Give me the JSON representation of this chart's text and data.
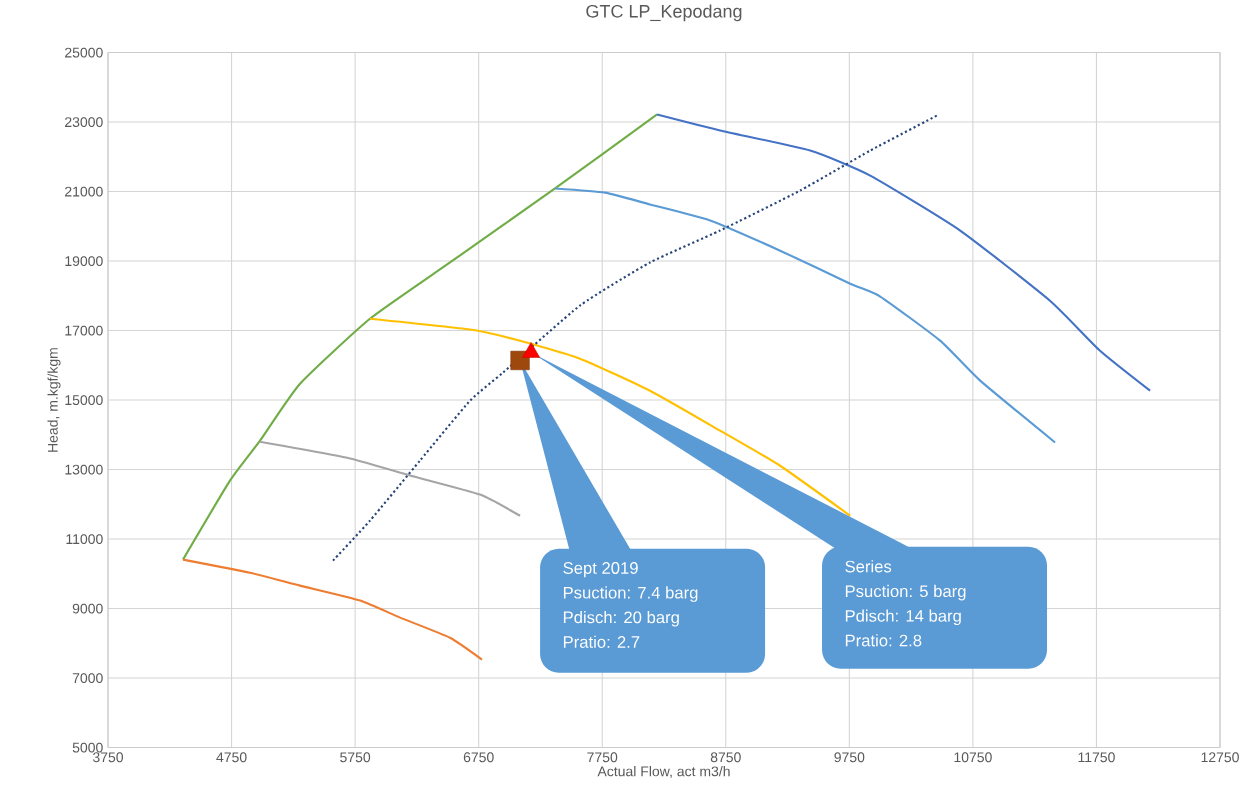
{
  "chart_data": {
    "type": "line",
    "title": "GTC LP_Kepodang",
    "xlabel": "Actual Flow, act m3/h",
    "ylabel": "Head, m.kgf/kgm",
    "xlim": [
      3750,
      12750
    ],
    "xticks": [
      3750,
      4750,
      5750,
      6750,
      7750,
      8750,
      9750,
      10750,
      11750,
      12750
    ],
    "ylim": [
      5000,
      25000
    ],
    "yticks": [
      5000,
      7000,
      9000,
      11000,
      13000,
      15000,
      17000,
      19000,
      21000,
      23000,
      25000
    ],
    "grid": true,
    "series": [
      {
        "type": "line",
        "color": "#70ad47",
        "x": [
          4357,
          4737,
          4980,
          5304,
          5870,
          6518,
          7368,
          8194
        ],
        "values": [
          10410,
          12680,
          13830,
          15470,
          17340,
          18960,
          21090,
          23220
        ]
      },
      {
        "type": "line",
        "color": "#ed7d31",
        "x": [
          4357,
          4899,
          5304,
          5790,
          6114,
          6518,
          6777
        ],
        "values": [
          10410,
          10030,
          9660,
          9230,
          8740,
          8160,
          7530
        ]
      },
      {
        "type": "line",
        "color": "#a5a5a5",
        "x": [
          4980,
          5709,
          6194,
          6761,
          7085
        ],
        "values": [
          13800,
          13320,
          12830,
          12280,
          11670
        ]
      },
      {
        "type": "line",
        "color": "#ffc000",
        "x": [
          5870,
          6680,
          7085,
          7570,
          8137,
          8704,
          9190,
          9757
        ],
        "values": [
          17340,
          17030,
          16710,
          16190,
          15270,
          14120,
          13110,
          11670
        ]
      },
      {
        "type": "line",
        "color": "#5b9bd5",
        "x": [
          7368,
          7773,
          8137,
          8623,
          9190,
          9757,
          10000,
          10485,
          10809,
          11415
        ],
        "values": [
          21090,
          20970,
          20630,
          20170,
          19300,
          18350,
          17980,
          16710,
          15560,
          13780
        ]
      },
      {
        "type": "line",
        "color": "#4472c4",
        "x": [
          8194,
          8704,
          9433,
          9919,
          10647,
          11374,
          11779,
          12184
        ],
        "values": [
          23220,
          22760,
          22180,
          21460,
          19880,
          17860,
          16420,
          15270
        ]
      },
      {
        "type": "line",
        "color": "#264478",
        "line_style": "dotted",
        "x": [
          5571,
          5870,
          6275,
          6680,
          6950,
          7570,
          8137,
          8704,
          9352,
          9919,
          10460
        ],
        "values": [
          10380,
          11530,
          13260,
          14980,
          15800,
          17720,
          18960,
          19880,
          21030,
          22180,
          23190
        ]
      },
      {
        "type": "scatter",
        "color": "#9e480e",
        "marker": "square",
        "x": [
          7085
        ],
        "values": [
          16140
        ]
      },
      {
        "type": "scatter",
        "color": "#ff0000",
        "marker": "triangle",
        "x": [
          7174
        ],
        "values": [
          16370
        ]
      }
    ],
    "annotations": [
      "Sept 2019",
      "Psuction: 7.4 barg",
      "Pdisch: 20 barg",
      "Pratio: 2.7",
      "Series",
      "Psuction: 5 barg",
      "Pdisch: 14 barg",
      "Pratio: 2.8"
    ]
  }
}
